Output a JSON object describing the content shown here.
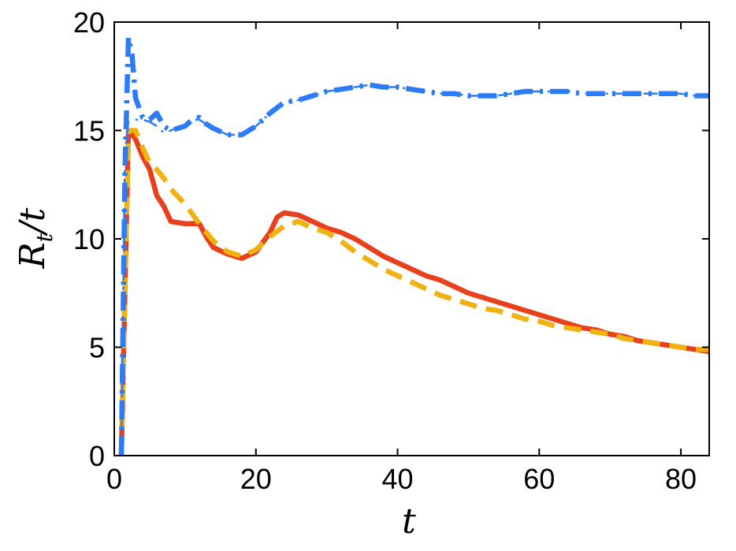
{
  "chart_data": {
    "type": "line",
    "title": "",
    "xlabel": "t",
    "ylabel": {
      "main": "R",
      "sub": "t",
      "rest": "/t"
    },
    "xlim": [
      0,
      84
    ],
    "ylim": [
      0,
      20
    ],
    "xticks": [
      "0",
      "20",
      "40",
      "60",
      "80"
    ],
    "yticks": [
      "0",
      "5",
      "10",
      "15",
      "20"
    ],
    "grid": false,
    "legend": "none",
    "series": [
      {
        "color": "#e8401c",
        "style": "solid",
        "width": "thick",
        "points": [
          [
            1,
            0
          ],
          [
            2,
            15
          ],
          [
            3,
            14.6
          ],
          [
            4,
            13.8
          ],
          [
            5,
            13.2
          ],
          [
            6,
            12
          ],
          [
            7,
            11.5
          ],
          [
            8,
            10.8
          ],
          [
            10,
            10.7
          ],
          [
            12,
            10.7
          ],
          [
            13,
            10.1
          ],
          [
            14,
            9.6
          ],
          [
            16,
            9.3
          ],
          [
            18,
            9.1
          ],
          [
            20,
            9.4
          ],
          [
            22,
            10.3
          ],
          [
            23,
            11
          ],
          [
            24,
            11.2
          ],
          [
            26,
            11.1
          ],
          [
            28,
            10.8
          ],
          [
            30,
            10.5
          ],
          [
            32,
            10.3
          ],
          [
            34,
            10
          ],
          [
            36,
            9.6
          ],
          [
            38,
            9.2
          ],
          [
            40,
            8.9
          ],
          [
            42,
            8.6
          ],
          [
            44,
            8.3
          ],
          [
            46,
            8.1
          ],
          [
            48,
            7.8
          ],
          [
            50,
            7.5
          ],
          [
            52,
            7.3
          ],
          [
            54,
            7.1
          ],
          [
            56,
            6.9
          ],
          [
            58,
            6.7
          ],
          [
            60,
            6.5
          ],
          [
            62,
            6.3
          ],
          [
            64,
            6.1
          ],
          [
            66,
            5.9
          ],
          [
            68,
            5.8
          ],
          [
            70,
            5.6
          ],
          [
            72,
            5.5
          ],
          [
            74,
            5.3
          ],
          [
            76,
            5.2
          ],
          [
            78,
            5.1
          ],
          [
            80,
            5
          ],
          [
            82,
            4.9
          ],
          [
            84,
            4.8
          ]
        ]
      },
      {
        "color": "#f0b211",
        "style": "dashed",
        "width": "thick",
        "points": [
          [
            1,
            0
          ],
          [
            2,
            15
          ],
          [
            3,
            15
          ],
          [
            4,
            14.2
          ],
          [
            5,
            13.5
          ],
          [
            6,
            13.2
          ],
          [
            7,
            12.8
          ],
          [
            8,
            12.3
          ],
          [
            10,
            11.6
          ],
          [
            12,
            10.7
          ],
          [
            14,
            9.9
          ],
          [
            16,
            9.4
          ],
          [
            18,
            9.2
          ],
          [
            20,
            9.5
          ],
          [
            22,
            10.1
          ],
          [
            24,
            10.6
          ],
          [
            26,
            10.8
          ],
          [
            28,
            10.5
          ],
          [
            30,
            10.3
          ],
          [
            32,
            9.9
          ],
          [
            34,
            9.4
          ],
          [
            36,
            9
          ],
          [
            38,
            8.6
          ],
          [
            40,
            8.3
          ],
          [
            42,
            8
          ],
          [
            44,
            7.7
          ],
          [
            46,
            7.4
          ],
          [
            48,
            7.2
          ],
          [
            50,
            7
          ],
          [
            52,
            6.8
          ],
          [
            54,
            6.7
          ],
          [
            56,
            6.5
          ],
          [
            58,
            6.3
          ],
          [
            60,
            6.2
          ],
          [
            62,
            6
          ],
          [
            64,
            5.9
          ],
          [
            66,
            5.8
          ],
          [
            68,
            5.7
          ],
          [
            70,
            5.6
          ],
          [
            72,
            5.4
          ],
          [
            74,
            5.3
          ],
          [
            76,
            5.2
          ],
          [
            78,
            5.1
          ],
          [
            80,
            5
          ],
          [
            82,
            4.9
          ],
          [
            84,
            4.9
          ]
        ]
      },
      {
        "color": "#2b7cf6",
        "style": "dashdot",
        "width": "thick",
        "points": [
          [
            1,
            0
          ],
          [
            1.5,
            13
          ],
          [
            2,
            19.3
          ],
          [
            2.5,
            18.5
          ],
          [
            3,
            16.5
          ],
          [
            4,
            15.6
          ],
          [
            5,
            15.5
          ],
          [
            6,
            15.8
          ],
          [
            7,
            15.2
          ],
          [
            8,
            15
          ],
          [
            10,
            15.2
          ],
          [
            11,
            15.5
          ],
          [
            12,
            15.6
          ],
          [
            13,
            15.3
          ],
          [
            14,
            15.1
          ],
          [
            16,
            14.8
          ],
          [
            18,
            14.8
          ],
          [
            20,
            15.2
          ],
          [
            22,
            15.8
          ],
          [
            24,
            16.3
          ],
          [
            26,
            16.4
          ],
          [
            28,
            16.6
          ],
          [
            30,
            16.8
          ],
          [
            32,
            16.9
          ],
          [
            34,
            17
          ],
          [
            36,
            17.1
          ],
          [
            38,
            17
          ],
          [
            40,
            17
          ],
          [
            42,
            16.9
          ],
          [
            44,
            16.8
          ],
          [
            46,
            16.7
          ],
          [
            48,
            16.7
          ],
          [
            50,
            16.6
          ],
          [
            52,
            16.6
          ],
          [
            54,
            16.6
          ],
          [
            56,
            16.7
          ],
          [
            58,
            16.8
          ],
          [
            60,
            16.8
          ],
          [
            62,
            16.8
          ],
          [
            64,
            16.8
          ],
          [
            66,
            16.7
          ],
          [
            68,
            16.7
          ],
          [
            70,
            16.7
          ],
          [
            72,
            16.7
          ],
          [
            74,
            16.7
          ],
          [
            76,
            16.7
          ],
          [
            78,
            16.7
          ],
          [
            80,
            16.7
          ],
          [
            82,
            16.6
          ],
          [
            84,
            16.6
          ]
        ]
      },
      {
        "color": "#2b7cf6",
        "style": "dashdot",
        "width": "thin",
        "points": [
          [
            1,
            0
          ],
          [
            1.5,
            14
          ],
          [
            2,
            15.4
          ],
          [
            3,
            15.5
          ],
          [
            4,
            15.5
          ],
          [
            5,
            15.4
          ],
          [
            6,
            15.2
          ],
          [
            7,
            14.9
          ],
          [
            8,
            15
          ],
          [
            10,
            15.3
          ],
          [
            11,
            15.5
          ],
          [
            12,
            15.5
          ],
          [
            13,
            15.3
          ],
          [
            14,
            15.1
          ],
          [
            16,
            14.8
          ],
          [
            18,
            14.8
          ],
          [
            20,
            15.2
          ],
          [
            22,
            15.8
          ],
          [
            24,
            16.3
          ],
          [
            26,
            16.4
          ],
          [
            28,
            16.6
          ],
          [
            30,
            16.8
          ],
          [
            32,
            16.9
          ],
          [
            34,
            17
          ],
          [
            36,
            17.1
          ],
          [
            38,
            17
          ],
          [
            40,
            17
          ],
          [
            42,
            16.9
          ],
          [
            44,
            16.8
          ],
          [
            46,
            16.7
          ],
          [
            48,
            16.7
          ],
          [
            50,
            16.6
          ],
          [
            52,
            16.6
          ],
          [
            54,
            16.6
          ],
          [
            56,
            16.7
          ],
          [
            58,
            16.8
          ],
          [
            60,
            16.8
          ],
          [
            62,
            16.8
          ],
          [
            64,
            16.8
          ],
          [
            66,
            16.7
          ],
          [
            68,
            16.7
          ],
          [
            70,
            16.7
          ],
          [
            72,
            16.7
          ],
          [
            74,
            16.7
          ],
          [
            76,
            16.7
          ],
          [
            78,
            16.7
          ],
          [
            80,
            16.7
          ],
          [
            82,
            16.6
          ],
          [
            84,
            16.6
          ]
        ]
      }
    ]
  }
}
